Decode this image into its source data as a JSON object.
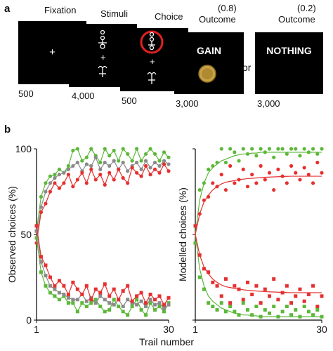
{
  "panel_a": {
    "letter": "a",
    "stages": {
      "fixation": {
        "title": "Fixation",
        "duration": "500"
      },
      "stimuli": {
        "title": "Stimuli",
        "duration": "4,000"
      },
      "choice": {
        "title": "Choice",
        "duration": "500"
      },
      "gain": {
        "prob": "(0.8)",
        "title": "Outcome",
        "screen_text": "GAIN",
        "duration": "3,000"
      },
      "nothing": {
        "prob": "(0.2)",
        "title": "Outcome",
        "screen_text": "NOTHING",
        "duration": "3,000"
      }
    },
    "or_label": "or"
  },
  "panel_b": {
    "letter": "b",
    "xlabel": "Trail number"
  },
  "chart_data": [
    {
      "type": "line",
      "ylabel": "Observed choices (%)",
      "xlabel": "Trail number",
      "xlim": [
        1,
        30
      ],
      "ylim": [
        0,
        100
      ],
      "xticks": [
        "1",
        "30"
      ],
      "yticks": [
        "0",
        "50",
        "100"
      ],
      "colors": {
        "green": "#5cb83a",
        "red": "#e53030",
        "gray": "#8a8a8a"
      },
      "series": [
        {
          "color": "green",
          "marker": "circle",
          "x": [
            1,
            2,
            3,
            4,
            5,
            6,
            7,
            8,
            9,
            10,
            11,
            12,
            13,
            14,
            15,
            16,
            17,
            18,
            19,
            20,
            21,
            22,
            23,
            24,
            25,
            26,
            27,
            28,
            29,
            30
          ],
          "values": [
            52,
            72,
            80,
            84,
            85,
            88,
            86,
            90,
            99,
            100,
            93,
            95,
            100,
            96,
            92,
            100,
            96,
            99,
            93,
            100,
            97,
            93,
            100,
            93,
            97,
            100,
            97,
            93,
            98,
            95
          ]
        },
        {
          "color": "gray",
          "marker": "circle",
          "x": [
            1,
            2,
            3,
            4,
            5,
            6,
            7,
            8,
            9,
            10,
            11,
            12,
            13,
            14,
            15,
            16,
            17,
            18,
            19,
            20,
            21,
            22,
            23,
            24,
            25,
            26,
            27,
            28,
            29,
            30
          ],
          "values": [
            48,
            66,
            75,
            80,
            83,
            85,
            86,
            88,
            90,
            92,
            87,
            91,
            90,
            95,
            88,
            92,
            90,
            93,
            88,
            92,
            87,
            90,
            92,
            88,
            93,
            89,
            92,
            90,
            93,
            91
          ]
        },
        {
          "color": "red",
          "marker": "circle",
          "x": [
            1,
            2,
            3,
            4,
            5,
            6,
            7,
            8,
            9,
            10,
            11,
            12,
            13,
            14,
            15,
            16,
            17,
            18,
            19,
            20,
            21,
            22,
            23,
            24,
            25,
            26,
            27,
            28,
            29,
            30
          ],
          "values": [
            45,
            63,
            68,
            75,
            80,
            77,
            80,
            85,
            78,
            82,
            86,
            80,
            88,
            82,
            85,
            79,
            86,
            82,
            88,
            83,
            80,
            89,
            86,
            84,
            90,
            85,
            88,
            86,
            91,
            87
          ]
        },
        {
          "color": "green",
          "marker": "square",
          "x": [
            1,
            2,
            3,
            4,
            5,
            6,
            7,
            8,
            9,
            10,
            11,
            12,
            13,
            14,
            15,
            16,
            17,
            18,
            19,
            20,
            21,
            22,
            23,
            24,
            25,
            26,
            27,
            28,
            29,
            30
          ],
          "values": [
            48,
            28,
            20,
            16,
            14,
            12,
            14,
            10,
            10,
            5,
            10,
            8,
            10,
            12,
            8,
            5,
            6,
            12,
            8,
            5,
            3,
            8,
            12,
            6,
            3,
            10,
            6,
            8,
            5,
            10
          ]
        },
        {
          "color": "gray",
          "marker": "square",
          "x": [
            1,
            2,
            3,
            4,
            5,
            6,
            7,
            8,
            9,
            10,
            11,
            12,
            13,
            14,
            15,
            16,
            17,
            18,
            19,
            20,
            21,
            22,
            23,
            24,
            25,
            26,
            27,
            28,
            29,
            30
          ],
          "values": [
            52,
            34,
            26,
            20,
            18,
            16,
            15,
            13,
            12,
            12,
            15,
            11,
            13,
            10,
            14,
            12,
            10,
            9,
            12,
            8,
            12,
            10,
            9,
            11,
            8,
            12,
            9,
            10,
            7,
            9
          ]
        },
        {
          "color": "red",
          "marker": "square",
          "x": [
            1,
            2,
            3,
            4,
            5,
            6,
            7,
            8,
            9,
            10,
            11,
            12,
            13,
            14,
            15,
            16,
            17,
            18,
            19,
            20,
            21,
            22,
            23,
            24,
            25,
            26,
            27,
            28,
            29,
            30
          ],
          "values": [
            55,
            37,
            32,
            25,
            20,
            23,
            20,
            15,
            22,
            18,
            15,
            20,
            12,
            18,
            16,
            21,
            14,
            18,
            12,
            17,
            20,
            11,
            14,
            16,
            10,
            15,
            12,
            14,
            9,
            13
          ]
        }
      ]
    },
    {
      "type": "scatter",
      "ylabel": "Modelled choices (%)",
      "xlabel": "Trail number",
      "xlim": [
        1,
        30
      ],
      "ylim": [
        0,
        100
      ],
      "xticks": [
        "1",
        "30"
      ],
      "colors": {
        "green": "#5cb83a",
        "red": "#e53030"
      },
      "series": [
        {
          "color": "green",
          "marker": "circle",
          "x": [
            1,
            2,
            3,
            4,
            5,
            6,
            7,
            8,
            9,
            10,
            11,
            12,
            13,
            14,
            15,
            16,
            17,
            18,
            19,
            20,
            21,
            22,
            23,
            24,
            25,
            26,
            27,
            28,
            29,
            30
          ],
          "values": [
            55,
            76,
            80,
            88,
            90,
            92,
            100,
            92,
            100,
            98,
            93,
            100,
            97,
            100,
            96,
            100,
            98,
            100,
            95,
            100,
            100,
            97,
            100,
            100,
            96,
            100,
            98,
            100,
            97,
            100
          ],
          "fit": [
            50,
            70,
            80,
            86,
            89,
            91,
            93,
            94,
            95,
            96,
            96.5,
            97,
            97,
            97.5,
            97.5,
            98,
            98,
            98,
            98,
            98,
            98,
            98,
            98,
            98,
            98,
            98,
            98,
            98,
            98,
            98
          ]
        },
        {
          "color": "red",
          "marker": "circle",
          "x": [
            1,
            2,
            3,
            4,
            5,
            6,
            7,
            8,
            9,
            10,
            11,
            12,
            13,
            14,
            15,
            16,
            17,
            18,
            19,
            20,
            21,
            22,
            23,
            24,
            25,
            26,
            27,
            28,
            29,
            30
          ],
          "values": [
            45,
            62,
            70,
            72,
            80,
            78,
            85,
            76,
            90,
            80,
            82,
            88,
            78,
            85,
            80,
            90,
            82,
            86,
            76,
            88,
            84,
            80,
            90,
            86,
            82,
            89,
            85,
            80,
            92,
            86
          ],
          "fit": [
            50,
            62,
            69,
            73,
            76,
            78,
            79.5,
            80.5,
            81,
            81.5,
            82,
            82.3,
            82.6,
            82.8,
            83,
            83.2,
            83.4,
            83.5,
            83.6,
            83.7,
            83.8,
            83.9,
            84,
            84,
            84,
            84,
            84,
            84,
            84,
            84
          ]
        },
        {
          "color": "green",
          "marker": "square",
          "x": [
            1,
            2,
            3,
            4,
            5,
            6,
            7,
            8,
            9,
            10,
            11,
            12,
            13,
            14,
            15,
            16,
            17,
            18,
            19,
            20,
            21,
            22,
            23,
            24,
            25,
            26,
            27,
            28,
            29,
            30
          ],
          "values": [
            45,
            25,
            18,
            10,
            8,
            6,
            10,
            5,
            8,
            5,
            3,
            10,
            6,
            3,
            8,
            2,
            6,
            4,
            8,
            2,
            5,
            8,
            3,
            6,
            2,
            8,
            5,
            3,
            6,
            2
          ],
          "fit": [
            50,
            30,
            20,
            14,
            11,
            9,
            7,
            6,
            5,
            4,
            3.5,
            3,
            3,
            2.5,
            2.5,
            2,
            2,
            2,
            2,
            2,
            2,
            2,
            2,
            2,
            2,
            2,
            2,
            2,
            2,
            2
          ]
        },
        {
          "color": "red",
          "marker": "square",
          "x": [
            1,
            2,
            3,
            4,
            5,
            6,
            7,
            8,
            9,
            10,
            11,
            12,
            13,
            14,
            15,
            16,
            17,
            18,
            19,
            20,
            21,
            22,
            23,
            24,
            25,
            26,
            27,
            28,
            29,
            30
          ],
          "values": [
            55,
            38,
            30,
            28,
            22,
            20,
            14,
            24,
            10,
            20,
            18,
            12,
            22,
            15,
            20,
            10,
            18,
            14,
            24,
            12,
            16,
            20,
            10,
            14,
            18,
            11,
            15,
            20,
            8,
            14
          ],
          "fit": [
            50,
            38,
            31,
            27,
            24,
            22,
            20.5,
            19.5,
            19,
            18.5,
            18,
            17.7,
            17.4,
            17.2,
            17,
            16.8,
            16.6,
            16.5,
            16.4,
            16.3,
            16.2,
            16.1,
            16,
            16,
            16,
            16,
            16,
            16,
            16,
            16
          ]
        }
      ]
    }
  ]
}
